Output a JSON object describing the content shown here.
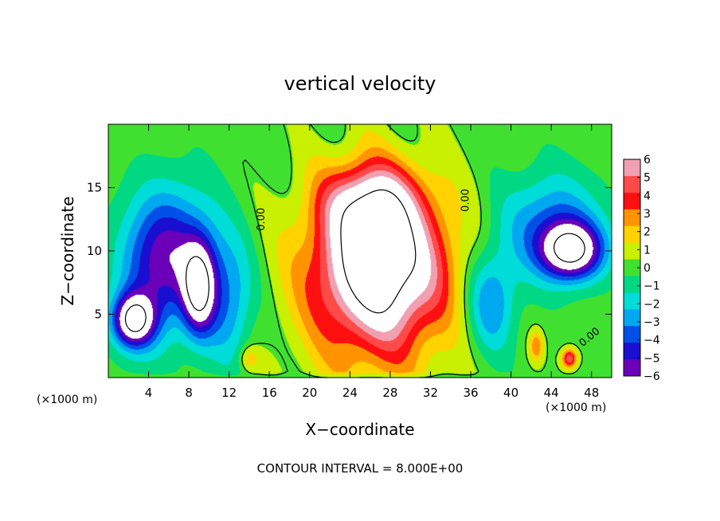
{
  "chart_data": {
    "type": "heatmap",
    "title": "vertical velocity",
    "xlabel": "X−coordinate",
    "ylabel": "Z−coordinate",
    "x_unit_left": "(×1000 m)",
    "x_unit_right": "(×1000 m)",
    "footer": "CONTOUR INTERVAL = 8.000E+00",
    "xlim": [
      0,
      50
    ],
    "ylim": [
      0,
      20
    ],
    "x_ticks": [
      4,
      8,
      12,
      16,
      20,
      24,
      28,
      32,
      36,
      40,
      44,
      48
    ],
    "y_ticks": [
      5,
      10,
      15
    ],
    "colorbar": {
      "min": -6,
      "max": 6,
      "tick_values": [
        6,
        5,
        4,
        3,
        2,
        1,
        0,
        -1,
        -2,
        -3,
        -4,
        -5,
        -6
      ],
      "tick_labels": [
        "6",
        "5",
        "4",
        "3",
        "2",
        "1",
        "0",
        "−1",
        "−2",
        "−3",
        "−4",
        "−5",
        "−6"
      ],
      "colors": [
        "#f0a0b0",
        "#ff4a4a",
        "#ff1010",
        "#ff9400",
        "#ffd200",
        "#c8f000",
        "#40e030",
        "#00d884",
        "#00dcd8",
        "#00a8f0",
        "#0050e8",
        "#1a0ed0",
        "#6a00b8"
      ]
    },
    "contour_labels": [
      {
        "text": "0.00",
        "x": 15.5,
        "y": 12.5,
        "rotate": -90
      },
      {
        "text": "0.00",
        "x": 35.8,
        "y": 14.0,
        "rotate": -90
      },
      {
        "text": "0.00",
        "x": 48.0,
        "y": 3.0,
        "rotate": -40
      }
    ],
    "features": [
      {
        "kind": "updraft",
        "x": 27,
        "z": 9,
        "amp": 7.5,
        "sx": 6.0,
        "sz": 5.5
      },
      {
        "kind": "updraft",
        "x": 26,
        "z": 14,
        "amp": 4.5,
        "sx": 4.5,
        "sz": 3.0
      },
      {
        "kind": "updraft",
        "x": 26.5,
        "z": 7,
        "amp": 3.0,
        "sx": 8.0,
        "sz": 9.0
      },
      {
        "kind": "downdraft",
        "x": 2.5,
        "z": 4.5,
        "amp": -7.5,
        "sx": 2.0,
        "sz": 2.0
      },
      {
        "kind": "downdraft",
        "x": 9,
        "z": 7,
        "amp": -7.0,
        "sx": 1.6,
        "sz": 3.5
      },
      {
        "kind": "downdraft",
        "x": 7,
        "z": 10,
        "amp": -4.0,
        "sx": 4.0,
        "sz": 5.0
      },
      {
        "kind": "downdraft",
        "x": 4,
        "z": 8,
        "amp": -3.0,
        "sx": 3.5,
        "sz": 6.0
      },
      {
        "kind": "downdraft",
        "x": 12,
        "z": 6,
        "amp": -3.0,
        "sx": 2.5,
        "sz": 5.0
      },
      {
        "kind": "downdraft",
        "x": 46,
        "z": 10,
        "amp": -7.5,
        "sx": 3.0,
        "sz": 2.2
      },
      {
        "kind": "downdraft",
        "x": 44,
        "z": 12,
        "amp": -3.5,
        "sx": 5.0,
        "sz": 4.0
      },
      {
        "kind": "downdraft",
        "x": 38,
        "z": 6,
        "amp": -3.5,
        "sx": 2.5,
        "sz": 4.0
      },
      {
        "kind": "updraft",
        "x": 45.8,
        "z": 1.5,
        "amp": 5.0,
        "sx": 0.8,
        "sz": 0.8
      },
      {
        "kind": "updraft",
        "x": 42.5,
        "z": 2.5,
        "amp": 3.0,
        "sx": 0.7,
        "sz": 1.2
      },
      {
        "kind": "updraft",
        "x": 14,
        "z": 1.5,
        "amp": 2.0,
        "sx": 1.0,
        "sz": 1.0
      }
    ]
  }
}
